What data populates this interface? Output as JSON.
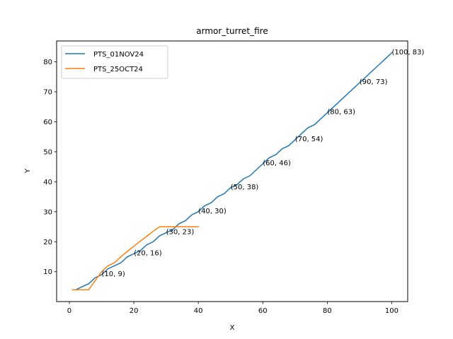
{
  "chart_data": {
    "type": "line",
    "title": "armor_turret_fire",
    "xlabel": "X",
    "ylabel": "Y",
    "xlim": [
      -3.95,
      104.95
    ],
    "ylim": [
      0.05,
      86.95
    ],
    "xticks": [
      0,
      20,
      40,
      60,
      80,
      100
    ],
    "yticks": [
      10,
      20,
      30,
      40,
      50,
      60,
      70,
      80
    ],
    "grid": false,
    "legend_position": "upper-left",
    "series": [
      {
        "name": "PTS_01NOV24",
        "color": "#1f77b4",
        "x": [
          1,
          2,
          4,
          6,
          8,
          10,
          12,
          14,
          16,
          18,
          20,
          22,
          24,
          26,
          28,
          30,
          32,
          34,
          36,
          38,
          40,
          42,
          44,
          46,
          48,
          50,
          52,
          54,
          56,
          58,
          60,
          62,
          64,
          66,
          68,
          70,
          72,
          74,
          76,
          78,
          80,
          82,
          84,
          86,
          88,
          90,
          92,
          94,
          96,
          98,
          100
        ],
        "y": [
          4,
          4,
          5,
          6,
          8,
          9,
          11,
          12,
          13,
          15,
          16,
          17,
          19,
          20,
          22,
          23,
          24,
          26,
          27,
          29,
          30,
          32,
          33,
          35,
          36,
          38,
          39,
          41,
          42,
          44,
          46,
          48,
          49,
          51,
          52,
          54,
          56,
          58,
          59,
          61,
          63,
          65,
          67,
          69,
          71,
          73,
          75,
          77,
          79,
          81,
          83
        ]
      },
      {
        "name": "PTS_25OCT24",
        "color": "#ff7f0e",
        "x": [
          1,
          2,
          4,
          6,
          8,
          10,
          12,
          14,
          16,
          18,
          20,
          22,
          24,
          26,
          28,
          30,
          32,
          34,
          36,
          38,
          40
        ],
        "y": [
          4,
          4,
          4,
          4,
          7,
          10,
          12,
          13,
          15,
          16.8,
          18.5,
          20.2,
          21.8,
          23.5,
          25,
          25,
          25,
          25,
          25,
          25,
          25
        ]
      }
    ],
    "annotations": [
      {
        "text": "(10, 9)",
        "x": 10,
        "y": 9
      },
      {
        "text": "(20, 16)",
        "x": 20,
        "y": 16
      },
      {
        "text": "(30, 23)",
        "x": 30,
        "y": 23
      },
      {
        "text": "(40, 30)",
        "x": 40,
        "y": 30
      },
      {
        "text": "(50, 38)",
        "x": 50,
        "y": 38
      },
      {
        "text": "(60, 46)",
        "x": 60,
        "y": 46
      },
      {
        "text": "(70, 54)",
        "x": 70,
        "y": 54
      },
      {
        "text": "(80, 63)",
        "x": 80,
        "y": 63
      },
      {
        "text": "(90, 73)",
        "x": 90,
        "y": 73
      },
      {
        "text": "(100, 83)",
        "x": 100,
        "y": 83
      }
    ]
  }
}
